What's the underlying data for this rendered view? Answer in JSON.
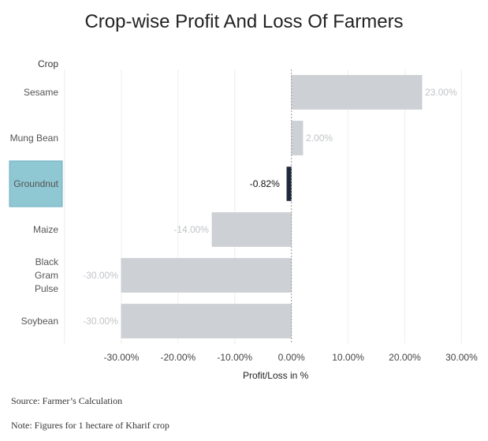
{
  "chart_data": {
    "type": "bar",
    "orientation": "horizontal",
    "title": "Crop-wise Profit And Loss Of Farmers",
    "row_header": "Crop",
    "xlabel": "Profit/Loss in %",
    "xlim": [
      -40,
      33
    ],
    "xticks": [
      -30,
      -20,
      -10,
      0,
      10,
      20,
      30
    ],
    "xtick_labels": [
      "-30.00%",
      "-20.00%",
      "-10.00%",
      "0.00%",
      "10.00%",
      "20.00%",
      "30.00%"
    ],
    "categories": [
      {
        "name": "Sesame",
        "lines": [
          "Sesame"
        ],
        "value": 23.0,
        "label": "23.00%",
        "highlighted": false
      },
      {
        "name": "Mung Bean",
        "lines": [
          "Mung Bean"
        ],
        "value": 2.0,
        "label": "2.00%",
        "highlighted": false
      },
      {
        "name": "Groundnut",
        "lines": [
          "Groundnut"
        ],
        "value": -0.82,
        "label": "-0.82%",
        "highlighted": true
      },
      {
        "name": "Maize",
        "lines": [
          "Maize"
        ],
        "value": -14.0,
        "label": "-14.00%",
        "highlighted": false
      },
      {
        "name": "Black Gram Pulse",
        "lines": [
          "Black",
          "Gram",
          "Pulse"
        ],
        "value": -30.0,
        "label": "-30.00%",
        "highlighted": false
      },
      {
        "name": "Soybean",
        "lines": [
          "Soybean"
        ],
        "value": -30.0,
        "label": "-30.00%",
        "highlighted": false
      }
    ],
    "colors": {
      "bar": "#cdd0d4",
      "bar_highlight": "#1e2a3c",
      "label": "#c0c3c7",
      "label_highlight": "#111111",
      "row_highlight": "#8fc7d3",
      "grid": "#eeeeee"
    }
  },
  "footnotes": {
    "source": "Source: Farmer’s Calculation",
    "note": "Note: Figures for 1 hectare of Kharif crop"
  }
}
